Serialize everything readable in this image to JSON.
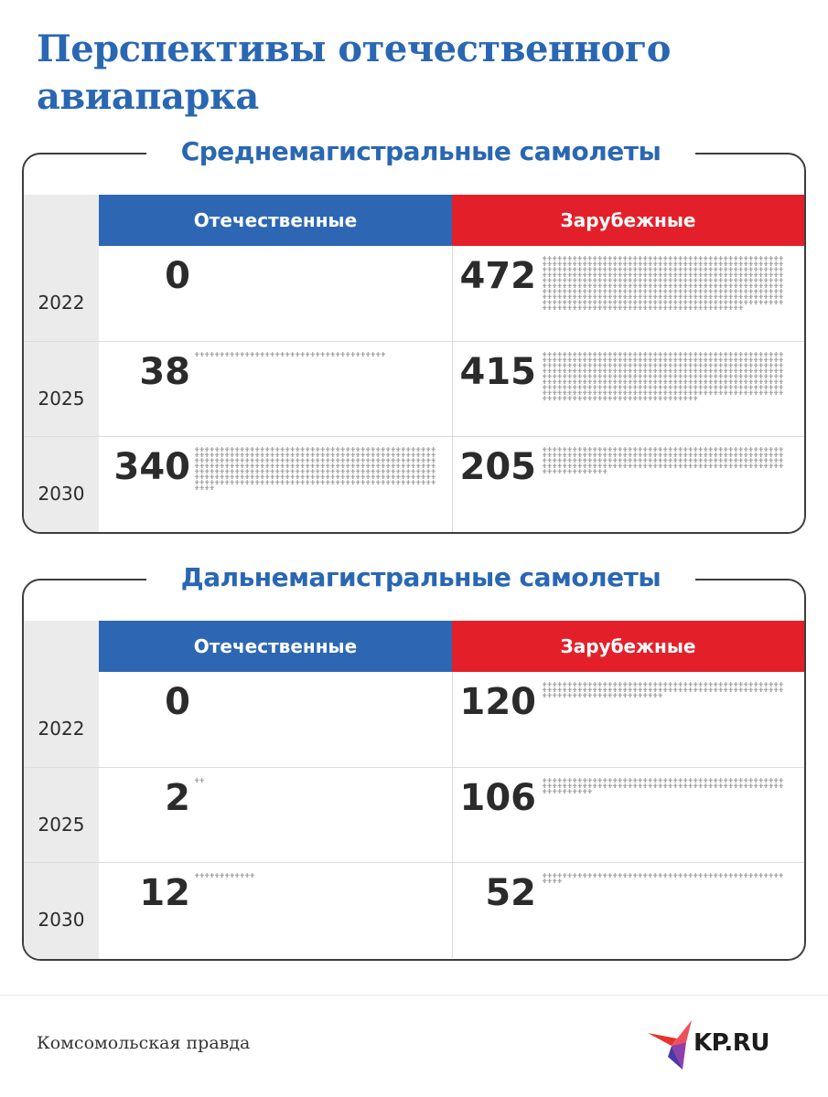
{
  "title": "Перспективы отечественного авиапарка",
  "colors": {
    "title": "#2a67b3",
    "domestic": "#2d67b3",
    "foreign": "#e3202a",
    "icon": "#9a9a9a"
  },
  "chart_data": [
    {
      "type": "table",
      "title": "Среднемагистральные самолеты",
      "columns": [
        "Отечественные",
        "Зарубежные"
      ],
      "rows": [
        "2022",
        "2025",
        "2030"
      ],
      "series": [
        {
          "name": "Отечественные",
          "values": [
            0,
            38,
            340
          ]
        },
        {
          "name": "Зарубежные",
          "values": [
            472,
            415,
            205
          ]
        }
      ]
    },
    {
      "type": "table",
      "title": "Дальнемагистральные самолеты",
      "columns": [
        "Отечественные",
        "Зарубежные"
      ],
      "rows": [
        "2022",
        "2025",
        "2030"
      ],
      "series": [
        {
          "name": "Отечественные",
          "values": [
            0,
            2,
            12
          ]
        },
        {
          "name": "Зарубежные",
          "values": [
            120,
            106,
            52
          ]
        }
      ]
    }
  ],
  "footer": {
    "source": "Комсомольская правда",
    "logo_text": "KP.RU"
  }
}
